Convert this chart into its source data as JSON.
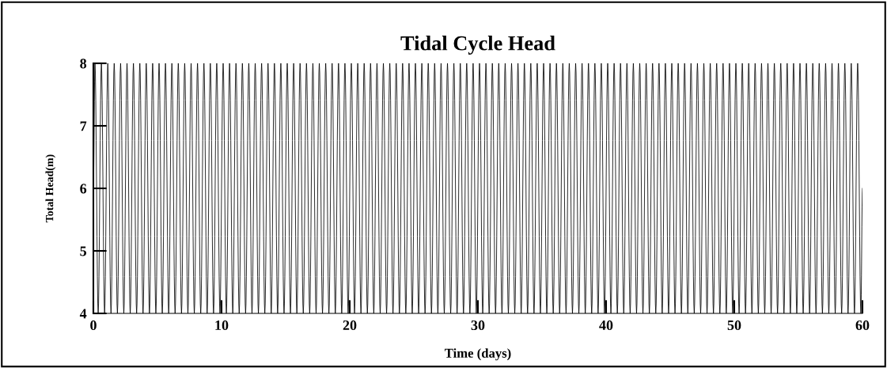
{
  "chart_data": {
    "type": "line",
    "title": "Tidal Cycle Head",
    "xlabel": "Time (days)",
    "ylabel": "Total Head(m)",
    "xlim": [
      0,
      60
    ],
    "xticks": [
      0,
      10,
      20,
      30,
      40,
      50,
      60
    ],
    "ylim": [
      4,
      8
    ],
    "yticks": [
      4,
      5,
      6,
      7,
      8
    ],
    "grid": false,
    "legend": false,
    "marker": "none",
    "line_style": "solid",
    "series": [
      {
        "color": "#000000",
        "x": [
          0,
          0.125,
          0.375,
          0.625,
          0.875,
          1.125,
          1.375,
          1.625,
          1.875,
          2.125,
          2.375,
          2.625,
          2.875,
          3.125,
          3.375,
          3.625,
          3.875,
          4.125,
          4.375,
          4.625,
          4.875,
          5.125,
          5.375,
          5.625,
          5.875,
          6.125,
          6.375,
          6.625,
          6.875,
          7.125,
          7.375,
          7.625,
          7.875,
          8.125,
          8.375,
          8.625,
          8.875,
          9.125,
          9.375,
          9.625,
          9.875,
          10.125,
          10.375,
          10.625,
          10.875,
          11.125,
          11.375,
          11.625,
          11.875,
          12.125,
          12.375,
          12.625,
          12.875,
          13.125,
          13.375,
          13.625,
          13.875,
          14.125,
          14.375,
          14.625,
          14.875,
          15.125,
          15.375,
          15.625,
          15.875,
          16.125,
          16.375,
          16.625,
          16.875,
          17.125,
          17.375,
          17.625,
          17.875,
          18.125,
          18.375,
          18.625,
          18.875,
          19.125,
          19.375,
          19.625,
          19.875,
          20.125,
          20.375,
          20.625,
          20.875,
          21.125,
          21.375,
          21.625,
          21.875,
          22.125,
          22.375,
          22.625,
          22.875,
          23.125,
          23.375,
          23.625,
          23.875,
          24.125,
          24.375,
          24.625,
          24.875,
          25.125,
          25.375,
          25.625,
          25.875,
          26.125,
          26.375,
          26.625,
          26.875,
          27.125,
          27.375,
          27.625,
          27.875,
          28.125,
          28.375,
          28.625,
          28.875,
          29.125,
          29.375,
          29.625,
          29.875,
          30.125,
          30.375,
          30.625,
          30.875,
          31.125,
          31.375,
          31.625,
          31.875,
          32.125,
          32.375,
          32.625,
          32.875,
          33.125,
          33.375,
          33.625,
          33.875,
          34.125,
          34.375,
          34.625,
          34.875,
          35.125,
          35.375,
          35.625,
          35.875,
          36.125,
          36.375,
          36.625,
          36.875,
          37.125,
          37.375,
          37.625,
          37.875,
          38.125,
          38.375,
          38.625,
          38.875,
          39.125,
          39.375,
          39.625,
          39.875,
          40.125,
          40.375,
          40.625,
          40.875,
          41.125,
          41.375,
          41.625,
          41.875,
          42.125,
          42.375,
          42.625,
          42.875,
          43.125,
          43.375,
          43.625,
          43.875,
          44.125,
          44.375,
          44.625,
          44.875,
          45.125,
          45.375,
          45.625,
          45.875,
          46.125,
          46.375,
          46.625,
          46.875,
          47.125,
          47.375,
          47.625,
          47.875,
          48.125,
          48.375,
          48.625,
          48.875,
          49.125,
          49.375,
          49.625,
          49.875,
          50.125,
          50.375,
          50.625,
          50.875,
          51.125,
          51.375,
          51.625,
          51.875,
          52.125,
          52.375,
          52.625,
          52.875,
          53.125,
          53.375,
          53.625,
          53.875,
          54.125,
          54.375,
          54.625,
          54.875,
          55.125,
          55.375,
          55.625,
          55.875,
          56.125,
          56.375,
          56.625,
          56.875,
          57.125,
          57.375,
          57.625,
          57.875,
          58.125,
          58.375,
          58.625,
          58.875,
          59.125,
          59.375,
          59.625,
          59.875,
          60
        ],
        "values": [
          6,
          8,
          4,
          8,
          4,
          8,
          4,
          8,
          4,
          8,
          4,
          8,
          4,
          8,
          4,
          8,
          4,
          8,
          4,
          8,
          4,
          8,
          4,
          8,
          4,
          8,
          4,
          8,
          4,
          8,
          4,
          8,
          4,
          8,
          4,
          8,
          4,
          8,
          4,
          8,
          4,
          8,
          4,
          8,
          4,
          8,
          4,
          8,
          4,
          8,
          4,
          8,
          4,
          8,
          4,
          8,
          4,
          8,
          4,
          8,
          4,
          8,
          4,
          8,
          4,
          8,
          4,
          8,
          4,
          8,
          4,
          8,
          4,
          8,
          4,
          8,
          4,
          8,
          4,
          8,
          4,
          8,
          4,
          8,
          4,
          8,
          4,
          8,
          4,
          8,
          4,
          8,
          4,
          8,
          4,
          8,
          4,
          8,
          4,
          8,
          4,
          8,
          4,
          8,
          4,
          8,
          4,
          8,
          4,
          8,
          4,
          8,
          4,
          8,
          4,
          8,
          4,
          8,
          4,
          8,
          4,
          8,
          4,
          8,
          4,
          8,
          4,
          8,
          4,
          8,
          4,
          8,
          4,
          8,
          4,
          8,
          4,
          8,
          4,
          8,
          4,
          8,
          4,
          8,
          4,
          8,
          4,
          8,
          4,
          8,
          4,
          8,
          4,
          8,
          4,
          8,
          4,
          8,
          4,
          8,
          4,
          8,
          4,
          8,
          4,
          8,
          4,
          8,
          4,
          8,
          4,
          8,
          4,
          8,
          4,
          8,
          4,
          8,
          4,
          8,
          4,
          8,
          4,
          8,
          4,
          8,
          4,
          8,
          4,
          8,
          4,
          8,
          4,
          8,
          4,
          8,
          4,
          8,
          4,
          8,
          4,
          8,
          4,
          8,
          4,
          8,
          4,
          8,
          4,
          8,
          4,
          8,
          4,
          8,
          4,
          8,
          4,
          8,
          4,
          8,
          4,
          8,
          4,
          8,
          4,
          8,
          4,
          8,
          4,
          8,
          4,
          8,
          4,
          8,
          4,
          8,
          4,
          8,
          4,
          8,
          4,
          6
        ]
      }
    ]
  }
}
